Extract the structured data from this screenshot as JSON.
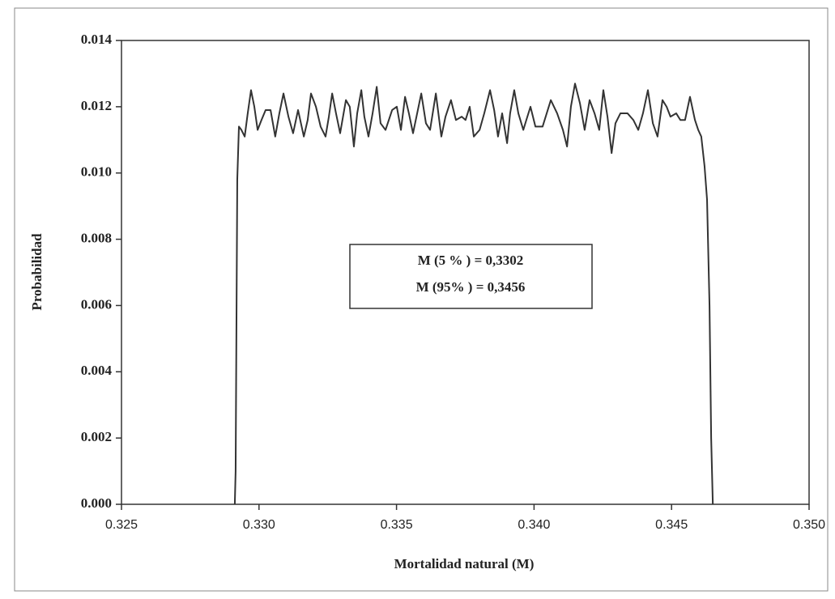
{
  "chart_data": {
    "type": "line",
    "xlabel": "Mortalidad natural (M)",
    "ylabel": "Probabilidad",
    "annotations": [
      "M (5 % )  = 0,3302",
      "M (95% ) = 0,3456"
    ],
    "color": "#333333",
    "xlim": [
      0.325,
      0.35
    ],
    "ylim": [
      0,
      0.014
    ],
    "xticks": [
      0.325,
      {
        "value": 0.33,
        "label": "0.330"
      },
      0.335,
      {
        "value": 0.34,
        "label": "0.340"
      },
      0.345,
      {
        "value": 0.35,
        "label": "0.350"
      }
    ],
    "yticks": [
      {
        "value": 0,
        "label": "0.000"
      },
      {
        "value": 0.002,
        "label": "0.002"
      },
      {
        "value": 0.004,
        "label": "0.004"
      },
      {
        "value": 0.006,
        "label": "0.006"
      },
      {
        "value": 0.008,
        "label": "0.008"
      },
      {
        "value": 0.01,
        "label": "0.010"
      },
      {
        "value": 0.012,
        "label": "0.012"
      },
      {
        "value": 0.014,
        "label": "0.014"
      }
    ],
    "x": [
      0.32912,
      0.32915,
      0.32921,
      0.32927,
      0.32936,
      0.32948,
      0.32959,
      0.32971,
      0.32983,
      0.32995,
      0.33009,
      0.33024,
      0.33042,
      0.33059,
      0.33074,
      0.33089,
      0.33107,
      0.33124,
      0.33142,
      0.33163,
      0.33177,
      0.33189,
      0.33207,
      0.33224,
      0.33242,
      0.33254,
      0.33266,
      0.3328,
      0.33295,
      0.33316,
      0.3333,
      0.33345,
      0.33357,
      0.33372,
      0.33383,
      0.33398,
      0.33413,
      0.33428,
      0.33442,
      0.3346,
      0.33484,
      0.33501,
      0.33516,
      0.33531,
      0.33545,
      0.3356,
      0.33575,
      0.3359,
      0.33607,
      0.33622,
      0.33643,
      0.33663,
      0.33678,
      0.33698,
      0.33716,
      0.33737,
      0.33751,
      0.33766,
      0.33781,
      0.33802,
      0.33819,
      0.3384,
      0.33855,
      0.33869,
      0.33884,
      0.33902,
      0.33913,
      0.33928,
      0.33943,
      0.33961,
      0.33972,
      0.33987,
      0.34005,
      0.34031,
      0.34061,
      0.34084,
      0.34105,
      0.3412,
      0.34134,
      0.34149,
      0.34167,
      0.34184,
      0.34202,
      0.3422,
      0.34237,
      0.34252,
      0.34267,
      0.34282,
      0.34296,
      0.34314,
      0.3434,
      0.34361,
      0.34379,
      0.34396,
      0.34414,
      0.34432,
      0.34449,
      0.34467,
      0.34482,
      0.34496,
      0.34517,
      0.34532,
      0.34549,
      0.34567,
      0.34585,
      0.34597,
      0.34608,
      0.3462,
      0.34629,
      0.34638,
      0.34644,
      0.3465
    ],
    "values": [
      0,
      0.001,
      0.0098,
      0.0114,
      0.0113,
      0.0111,
      0.0118,
      0.0125,
      0.012,
      0.0113,
      0.0116,
      0.0119,
      0.0119,
      0.0111,
      0.0118,
      0.0124,
      0.0117,
      0.0112,
      0.0119,
      0.0111,
      0.0116,
      0.0124,
      0.012,
      0.0114,
      0.0111,
      0.0117,
      0.0124,
      0.0118,
      0.0112,
      0.0122,
      0.012,
      0.0108,
      0.0118,
      0.0125,
      0.0117,
      0.0111,
      0.0118,
      0.0126,
      0.0115,
      0.0113,
      0.0119,
      0.012,
      0.0113,
      0.0123,
      0.0118,
      0.0112,
      0.0118,
      0.0124,
      0.0115,
      0.0113,
      0.0124,
      0.0111,
      0.0117,
      0.0122,
      0.0116,
      0.0117,
      0.0116,
      0.012,
      0.0111,
      0.0113,
      0.0118,
      0.0125,
      0.0119,
      0.0111,
      0.0118,
      0.0109,
      0.0118,
      0.0125,
      0.0118,
      0.0113,
      0.0116,
      0.012,
      0.0114,
      0.0114,
      0.0122,
      0.0118,
      0.0113,
      0.0108,
      0.012,
      0.0127,
      0.0121,
      0.0113,
      0.0122,
      0.0118,
      0.0113,
      0.0125,
      0.0117,
      0.0106,
      0.0115,
      0.0118,
      0.0118,
      0.0116,
      0.0113,
      0.0118,
      0.0125,
      0.0115,
      0.0111,
      0.0122,
      0.012,
      0.0117,
      0.0118,
      0.0116,
      0.0116,
      0.0123,
      0.0116,
      0.0113,
      0.0111,
      0.0102,
      0.0092,
      0.006,
      0.002,
      0
    ]
  }
}
